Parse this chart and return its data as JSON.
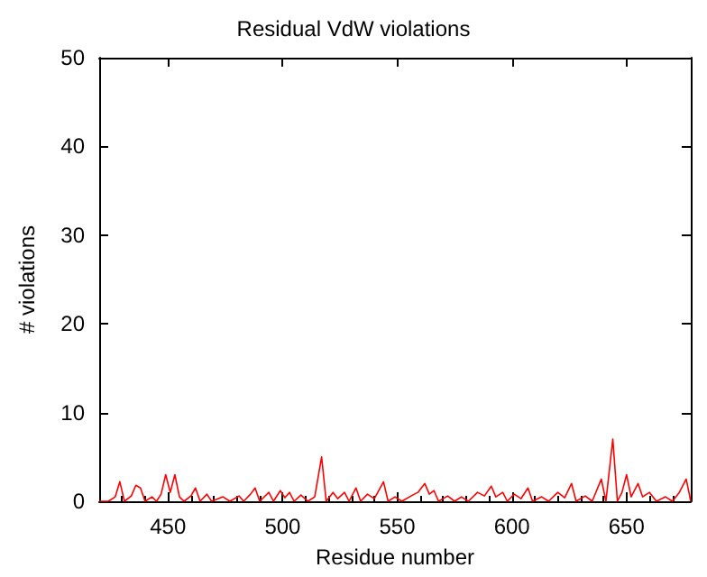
{
  "chart_data": {
    "type": "line",
    "title": "Residual VdW violations",
    "xlabel": "Residue number",
    "ylabel": "# violations",
    "x": [
      420,
      424,
      427,
      429,
      431,
      434,
      436,
      438,
      440,
      443,
      445,
      447,
      449,
      451,
      453,
      455,
      457,
      460,
      462,
      464,
      467,
      469,
      474,
      477,
      481,
      483,
      486,
      488,
      490,
      494,
      496,
      499,
      501,
      503,
      505,
      508,
      511,
      514,
      517,
      519,
      522,
      524,
      527,
      529,
      532,
      534,
      537,
      540,
      544,
      546,
      549,
      552,
      556,
      559,
      562,
      564,
      566,
      568,
      572,
      575,
      578,
      581,
      585,
      588,
      591,
      593,
      596,
      598,
      601,
      604,
      607,
      609,
      613,
      616,
      620,
      623,
      626,
      628,
      632,
      635,
      639,
      641,
      644,
      646,
      648,
      650,
      652,
      655,
      657,
      660,
      663,
      667,
      670,
      673,
      676,
      678
    ],
    "series": [
      {
        "color": "#ff0000",
        "values": [
          0,
          0,
          0.5,
          2.2,
          0,
          0.6,
          1.8,
          1.5,
          0,
          0.5,
          0,
          0.8,
          3,
          1,
          3,
          0.5,
          0,
          0.6,
          1.5,
          0,
          0.8,
          0,
          0.5,
          0,
          0.6,
          0,
          0.8,
          1.5,
          0,
          1,
          0,
          1.2,
          0.4,
          1,
          0,
          0.7,
          0,
          0.5,
          5,
          0,
          1,
          0.3,
          1,
          0,
          1.5,
          0,
          0.8,
          0.3,
          2.2,
          0,
          0.5,
          0,
          0.6,
          1,
          2,
          0.8,
          1.2,
          0,
          0.6,
          0,
          0.5,
          0,
          1,
          0.6,
          1.7,
          0.5,
          1,
          0,
          0.8,
          0.3,
          1.5,
          0,
          0.5,
          0,
          1,
          0.4,
          2,
          0,
          0.6,
          0,
          2.5,
          0,
          7,
          0,
          1,
          3,
          0.5,
          2,
          0.5,
          1,
          0,
          0.5,
          0,
          1,
          2.5,
          0
        ]
      }
    ],
    "xlim": [
      420,
      678
    ],
    "xticks": [
      450,
      500,
      550,
      600,
      650
    ],
    "ylim": [
      0,
      50
    ],
    "yticks": [
      0,
      10,
      20,
      30,
      40,
      50
    ],
    "marker": "none",
    "line_style": "solid"
  }
}
